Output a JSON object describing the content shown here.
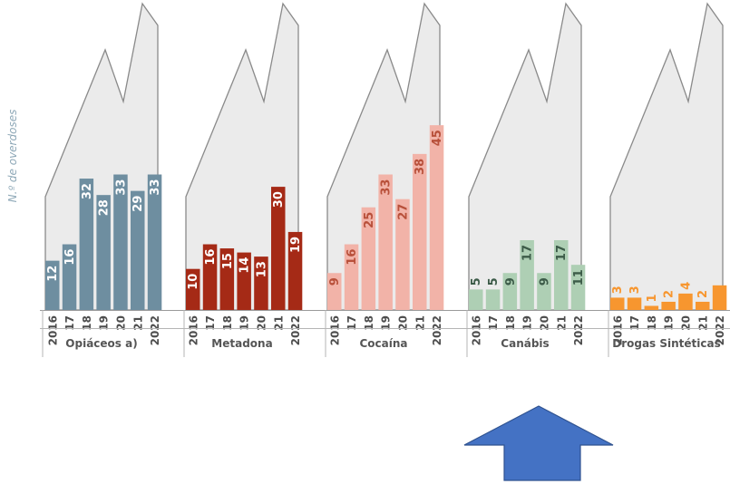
{
  "chart_data": {
    "type": "bar",
    "ylabel": "N.º de overdoses",
    "year_labels": [
      "2016",
      "17",
      "18",
      "19",
      "20",
      "21",
      "2022"
    ],
    "groups": [
      {
        "name": "Opiáceos a)",
        "color": "#6e8ea0",
        "label_color": "#ffffff",
        "values": [
          12,
          16,
          32,
          28,
          33,
          29,
          33
        ]
      },
      {
        "name": "Metadona",
        "color": "#a52a16",
        "label_color": "#ffffff",
        "values": [
          10,
          16,
          15,
          14,
          13,
          30,
          19
        ]
      },
      {
        "name": "Cocaína",
        "color": "#f2b3a8",
        "label_color": "#b8503a",
        "values": [
          9,
          16,
          25,
          33,
          27,
          38,
          45
        ]
      },
      {
        "name": "Canábis",
        "color": "#aecfb4",
        "label_color": "#3c5b48",
        "values": [
          5,
          5,
          9,
          17,
          9,
          17,
          11
        ]
      },
      {
        "name": "Drogas Sintéticas",
        "color": "#f7962f",
        "label_color": "#f7962f",
        "values": [
          3,
          3,
          1,
          2,
          4,
          2,
          6
        ]
      }
    ],
    "background_series": {
      "description_color": "#ebebeb",
      "values": [
        40,
        55,
        80,
        65,
        100
      ]
    },
    "highlight": "Canábis",
    "grid": false
  }
}
